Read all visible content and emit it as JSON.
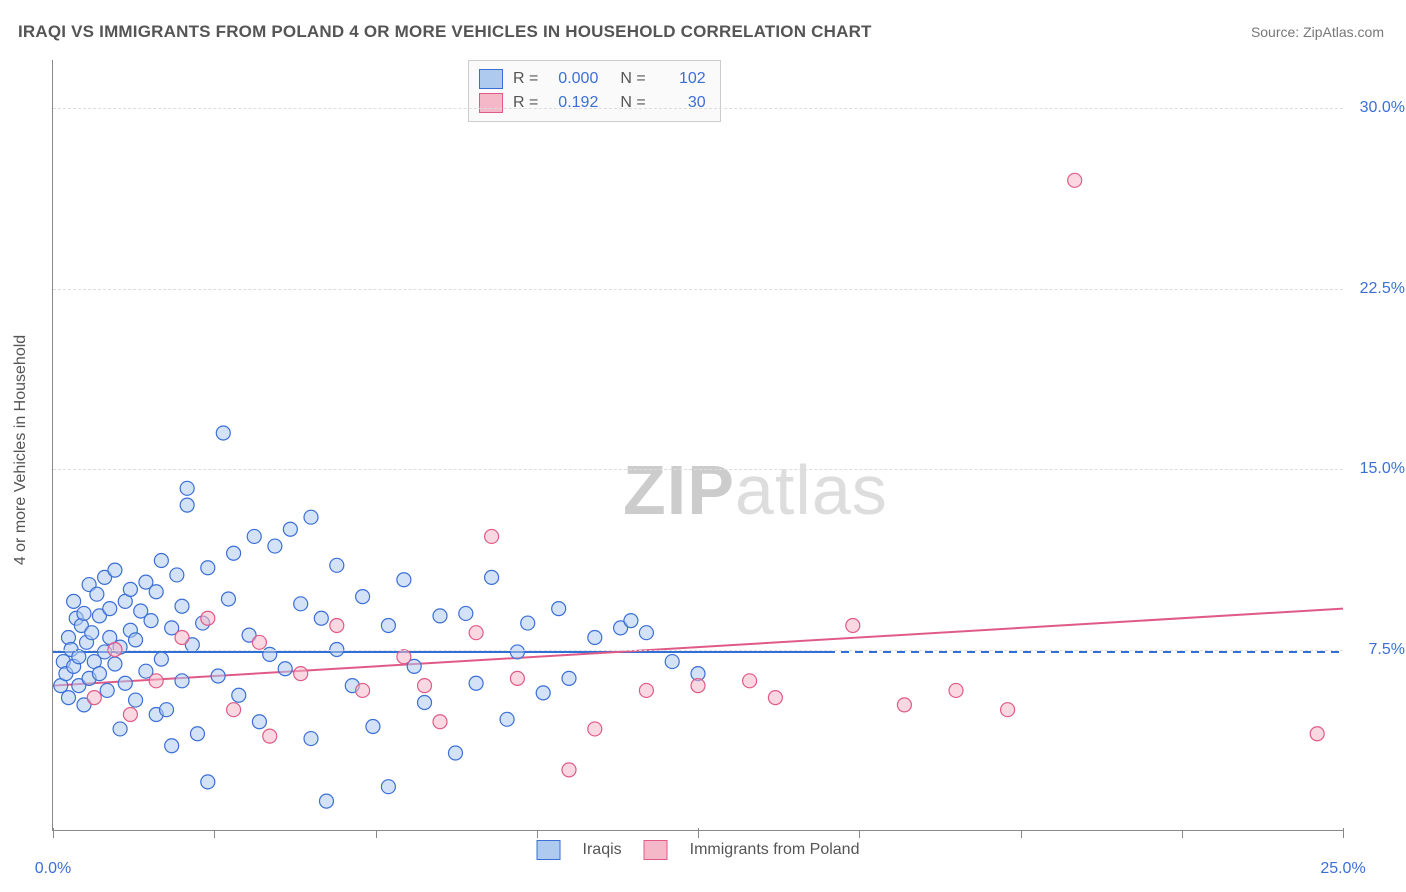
{
  "title": "IRAQI VS IMMIGRANTS FROM POLAND 4 OR MORE VEHICLES IN HOUSEHOLD CORRELATION CHART",
  "source": "Source: ZipAtlas.com",
  "yaxis_title": "4 or more Vehicles in Household",
  "watermark_bold": "ZIP",
  "watermark_light": "atlas",
  "chart": {
    "type": "scatter",
    "plot_bg": "#ffffff",
    "grid_color": "#dddddd",
    "axis_color": "#888888",
    "xlim": [
      0,
      25
    ],
    "ylim": [
      0,
      32
    ],
    "x_ticks": [
      0,
      12.5,
      25
    ],
    "x_tick_labels": [
      "0.0%",
      "",
      "25.0%"
    ],
    "x_minor_ticks": [
      3.125,
      6.25,
      9.375,
      15.625,
      18.75,
      21.875
    ],
    "y_gridlines": [
      7.5,
      15.0,
      22.5,
      30.0
    ],
    "y_tick_labels": [
      "7.5%",
      "15.0%",
      "22.5%",
      "30.0%"
    ],
    "marker_radius": 7,
    "series": [
      {
        "name": "Iraqis",
        "label": "Iraqis",
        "fill": "#aecbef",
        "fill_opacity": 0.55,
        "stroke": "#3b6fd6",
        "line_color": "#2f6fd6",
        "line_width": 2,
        "R": "0.000",
        "N": "102",
        "trend": {
          "x1": 0,
          "y1": 7.4,
          "x2": 15,
          "y2": 7.4,
          "dash_after_x": 15,
          "x_end": 25
        },
        "points": [
          [
            0.15,
            6.0
          ],
          [
            0.2,
            7.0
          ],
          [
            0.25,
            6.5
          ],
          [
            0.3,
            8.0
          ],
          [
            0.3,
            5.5
          ],
          [
            0.35,
            7.5
          ],
          [
            0.4,
            6.8
          ],
          [
            0.4,
            9.5
          ],
          [
            0.45,
            8.8
          ],
          [
            0.5,
            7.2
          ],
          [
            0.5,
            6.0
          ],
          [
            0.55,
            8.5
          ],
          [
            0.6,
            9.0
          ],
          [
            0.6,
            5.2
          ],
          [
            0.65,
            7.8
          ],
          [
            0.7,
            6.3
          ],
          [
            0.7,
            10.2
          ],
          [
            0.75,
            8.2
          ],
          [
            0.8,
            7.0
          ],
          [
            0.85,
            9.8
          ],
          [
            0.9,
            6.5
          ],
          [
            0.9,
            8.9
          ],
          [
            1.0,
            7.4
          ],
          [
            1.0,
            10.5
          ],
          [
            1.05,
            5.8
          ],
          [
            1.1,
            8.0
          ],
          [
            1.1,
            9.2
          ],
          [
            1.2,
            6.9
          ],
          [
            1.2,
            10.8
          ],
          [
            1.3,
            7.6
          ],
          [
            1.3,
            4.2
          ],
          [
            1.4,
            9.5
          ],
          [
            1.4,
            6.1
          ],
          [
            1.5,
            8.3
          ],
          [
            1.5,
            10.0
          ],
          [
            1.6,
            5.4
          ],
          [
            1.6,
            7.9
          ],
          [
            1.7,
            9.1
          ],
          [
            1.8,
            6.6
          ],
          [
            1.8,
            10.3
          ],
          [
            1.9,
            8.7
          ],
          [
            2.0,
            4.8
          ],
          [
            2.0,
            9.9
          ],
          [
            2.1,
            7.1
          ],
          [
            2.1,
            11.2
          ],
          [
            2.2,
            5.0
          ],
          [
            2.3,
            8.4
          ],
          [
            2.3,
            3.5
          ],
          [
            2.4,
            10.6
          ],
          [
            2.5,
            6.2
          ],
          [
            2.5,
            9.3
          ],
          [
            2.6,
            14.2
          ],
          [
            2.6,
            13.5
          ],
          [
            2.7,
            7.7
          ],
          [
            2.8,
            4.0
          ],
          [
            2.9,
            8.6
          ],
          [
            3.0,
            10.9
          ],
          [
            3.0,
            2.0
          ],
          [
            3.2,
            6.4
          ],
          [
            3.3,
            16.5
          ],
          [
            3.4,
            9.6
          ],
          [
            3.5,
            11.5
          ],
          [
            3.6,
            5.6
          ],
          [
            3.8,
            8.1
          ],
          [
            3.9,
            12.2
          ],
          [
            4.0,
            4.5
          ],
          [
            4.2,
            7.3
          ],
          [
            4.3,
            11.8
          ],
          [
            4.5,
            6.7
          ],
          [
            4.6,
            12.5
          ],
          [
            4.8,
            9.4
          ],
          [
            5.0,
            3.8
          ],
          [
            5.0,
            13.0
          ],
          [
            5.2,
            8.8
          ],
          [
            5.3,
            1.2
          ],
          [
            5.5,
            7.5
          ],
          [
            5.5,
            11.0
          ],
          [
            5.8,
            6.0
          ],
          [
            6.0,
            9.7
          ],
          [
            6.2,
            4.3
          ],
          [
            6.5,
            8.5
          ],
          [
            6.5,
            1.8
          ],
          [
            6.8,
            10.4
          ],
          [
            7.0,
            6.8
          ],
          [
            7.2,
            5.3
          ],
          [
            7.5,
            8.9
          ],
          [
            7.8,
            3.2
          ],
          [
            8.0,
            9.0
          ],
          [
            8.2,
            6.1
          ],
          [
            8.5,
            10.5
          ],
          [
            8.8,
            4.6
          ],
          [
            9.0,
            7.4
          ],
          [
            9.2,
            8.6
          ],
          [
            9.5,
            5.7
          ],
          [
            9.8,
            9.2
          ],
          [
            10.0,
            6.3
          ],
          [
            10.5,
            8.0
          ],
          [
            11.0,
            8.4
          ],
          [
            11.5,
            8.2
          ],
          [
            12.0,
            7.0
          ],
          [
            12.5,
            6.5
          ],
          [
            11.2,
            8.7
          ]
        ]
      },
      {
        "name": "Immigrants from Poland",
        "label": "Immigrants from Poland",
        "fill": "#f5b8c8",
        "fill_opacity": 0.55,
        "stroke": "#e05a88",
        "line_color": "#e05a88",
        "line_width": 2,
        "R": "0.192",
        "N": "30",
        "trend": {
          "x1": 0,
          "y1": 6.0,
          "x2": 25,
          "y2": 9.2
        },
        "points": [
          [
            0.8,
            5.5
          ],
          [
            1.2,
            7.5
          ],
          [
            1.5,
            4.8
          ],
          [
            2.0,
            6.2
          ],
          [
            2.5,
            8.0
          ],
          [
            3.0,
            8.8
          ],
          [
            3.5,
            5.0
          ],
          [
            4.0,
            7.8
          ],
          [
            4.2,
            3.9
          ],
          [
            4.8,
            6.5
          ],
          [
            5.5,
            8.5
          ],
          [
            6.0,
            5.8
          ],
          [
            6.8,
            7.2
          ],
          [
            7.2,
            6.0
          ],
          [
            7.5,
            4.5
          ],
          [
            8.2,
            8.2
          ],
          [
            8.5,
            12.2
          ],
          [
            9.0,
            6.3
          ],
          [
            10.0,
            2.5
          ],
          [
            10.5,
            4.2
          ],
          [
            11.5,
            5.8
          ],
          [
            12.5,
            6.0
          ],
          [
            13.5,
            6.2
          ],
          [
            14.0,
            5.5
          ],
          [
            15.5,
            8.5
          ],
          [
            16.5,
            5.2
          ],
          [
            17.5,
            5.8
          ],
          [
            18.5,
            5.0
          ],
          [
            19.8,
            27.0
          ],
          [
            24.5,
            4.0
          ]
        ]
      }
    ]
  },
  "legend_top": {
    "rows": [
      {
        "swatch_fill": "#aecbef",
        "swatch_stroke": "#3b6fd6",
        "r_label": "R =",
        "r_val": "0.000",
        "n_label": "N =",
        "n_val": "102"
      },
      {
        "swatch_fill": "#f5b8c8",
        "swatch_stroke": "#e05a88",
        "r_label": "R =",
        "r_val": "0.192",
        "n_label": "N =",
        "n_val": "30"
      }
    ]
  },
  "legend_bottom": {
    "items": [
      {
        "swatch_fill": "#aecbef",
        "swatch_stroke": "#3b6fd6",
        "label": "Iraqis"
      },
      {
        "swatch_fill": "#f5b8c8",
        "swatch_stroke": "#e05a88",
        "label": "Immigrants from Poland"
      }
    ]
  }
}
